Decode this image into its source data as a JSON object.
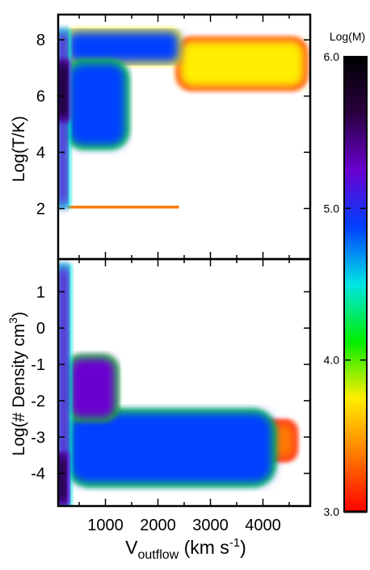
{
  "chart_data": [
    {
      "type": "heatmap",
      "panel": "top",
      "ylabel": "Log(T/K)",
      "xlim": [
        100,
        4900
      ],
      "ylim": [
        0.2,
        8.9
      ],
      "yticks": [
        2,
        4,
        6,
        8
      ],
      "ytick_labels": [
        "2",
        "4",
        "6",
        "8"
      ],
      "regions": [
        {
          "name": "base-column",
          "x": [
            100,
            280
          ],
          "y": [
            2.1,
            8.3
          ],
          "log_m": 5.3
        },
        {
          "name": "core-column",
          "x": [
            100,
            280
          ],
          "y": [
            5.2,
            7.2
          ],
          "log_m": 6.0
        },
        {
          "name": "hot-band",
          "x": [
            280,
            2400
          ],
          "y": [
            7.2,
            8.3
          ],
          "log_m": 4.8
        },
        {
          "name": "hot-band-tail",
          "x": [
            2400,
            4800
          ],
          "y": [
            6.3,
            8.0
          ],
          "log_m": 3.6
        },
        {
          "name": "mid-plume",
          "x": [
            280,
            1400
          ],
          "y": [
            4.2,
            7.2
          ],
          "log_m": 4.9
        },
        {
          "name": "t2-floor-line",
          "x": [
            280,
            2400
          ],
          "y": [
            2.0,
            2.1
          ],
          "log_m": 3.5
        }
      ]
    },
    {
      "type": "heatmap",
      "panel": "bottom",
      "xlabel": "Voutflow (km s-1)",
      "ylabel": "Log(# Density cm3)",
      "xlim": [
        100,
        4900
      ],
      "ylim": [
        -4.9,
        1.9
      ],
      "xticks": [
        1000,
        2000,
        3000,
        4000
      ],
      "xtick_labels": [
        "1000",
        "2000",
        "3000",
        "4000"
      ],
      "yticks": [
        1,
        0,
        -1,
        -2,
        -3,
        -4
      ],
      "ytick_labels": [
        "1",
        "0",
        "-1",
        "-2",
        "-3",
        "-4"
      ],
      "regions": [
        {
          "name": "base-column",
          "x": [
            100,
            300
          ],
          "y": [
            -4.9,
            1.7
          ],
          "log_m": 5.4
        },
        {
          "name": "core-column",
          "x": [
            100,
            250
          ],
          "y": [
            -4.8,
            -3.5
          ],
          "log_m": 6.0
        },
        {
          "name": "diffuse-tongue",
          "x": [
            300,
            4200
          ],
          "y": [
            -4.3,
            -2.3
          ],
          "log_m": 4.9
        },
        {
          "name": "dense-shelf",
          "x": [
            300,
            1200
          ],
          "y": [
            -2.5,
            -0.8
          ],
          "log_m": 5.2
        },
        {
          "name": "outer-tail",
          "x": [
            3600,
            4600
          ],
          "y": [
            -3.6,
            -2.6
          ],
          "log_m": 3.4
        }
      ]
    }
  ],
  "colorbar": {
    "title": "Log(M)",
    "range": [
      3.0,
      6.0
    ],
    "ticks": [
      3.0,
      4.0,
      5.0,
      6.0
    ],
    "tick_labels": [
      "3.0",
      "4.0",
      "5.0",
      "6.0"
    ],
    "colormap": [
      "#ff0000",
      "#ff7a00",
      "#ffee00",
      "#00ee00",
      "#00e5e5",
      "#0040ff",
      "#6a00d0",
      "#2a0040",
      "#000000"
    ]
  },
  "xlabel_parts": {
    "main": "V",
    "sub": "outflow",
    "unit": " (km s",
    "exp": "-1",
    "close": ")"
  },
  "ylabel_bottom_parts": {
    "main": "Log(# Density cm",
    "exp": "3",
    "close": ")"
  }
}
